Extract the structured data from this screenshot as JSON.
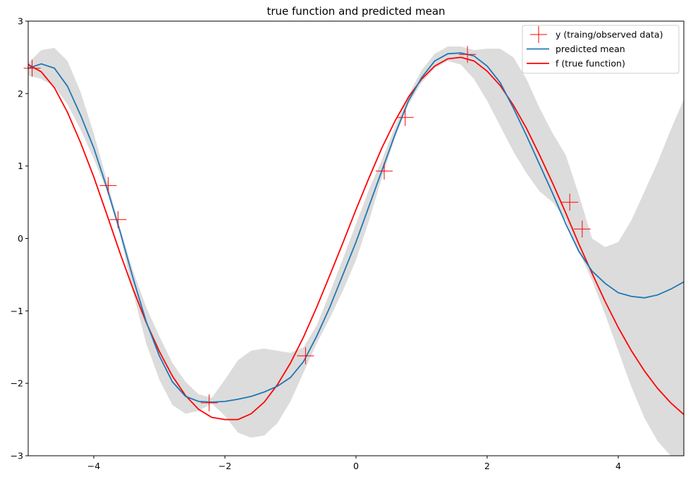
{
  "chart_data": {
    "type": "line",
    "title": "true function and predicted mean",
    "xlabel": "",
    "ylabel": "",
    "xlim": [
      -5,
      5
    ],
    "ylim": [
      -3,
      3
    ],
    "xticks": [
      -4,
      -2,
      0,
      2,
      4
    ],
    "yticks": [
      -3,
      -2,
      -1,
      0,
      1,
      2,
      3
    ],
    "legend_position": "top-right",
    "grid": false,
    "colors": {
      "observed": "#ff0000",
      "mean": "#1f77b4",
      "true": "#ff0000",
      "band": "#dcdcdc"
    },
    "series": [
      {
        "name": "y (traing/observed data)",
        "kind": "markers",
        "x": [
          -4.94,
          -3.78,
          -3.63,
          -2.24,
          -0.77,
          0.43,
          0.75,
          1.7,
          3.26,
          3.45
        ],
        "y": [
          2.35,
          0.73,
          0.26,
          -2.27,
          -1.62,
          0.93,
          1.67,
          2.54,
          0.5,
          0.13
        ]
      },
      {
        "name": "predicted mean",
        "kind": "line",
        "x": [
          -5,
          -4.8,
          -4.6,
          -4.4,
          -4.2,
          -4.0,
          -3.8,
          -3.6,
          -3.4,
          -3.2,
          -3.0,
          -2.8,
          -2.6,
          -2.4,
          -2.2,
          -2.0,
          -1.8,
          -1.6,
          -1.4,
          -1.2,
          -1.0,
          -0.8,
          -0.6,
          -0.4,
          -0.2,
          0.0,
          0.2,
          0.4,
          0.6,
          0.8,
          1.0,
          1.2,
          1.4,
          1.6,
          1.8,
          2.0,
          2.2,
          2.4,
          2.6,
          2.8,
          3.0,
          3.2,
          3.4,
          3.6,
          3.8,
          4.0,
          4.2,
          4.4,
          4.6,
          4.8,
          5.0
        ],
        "y": [
          2.35,
          2.41,
          2.35,
          2.1,
          1.7,
          1.25,
          0.7,
          0.1,
          -0.55,
          -1.15,
          -1.62,
          -1.98,
          -2.18,
          -2.25,
          -2.26,
          -2.25,
          -2.22,
          -2.18,
          -2.12,
          -2.04,
          -1.92,
          -1.7,
          -1.35,
          -0.95,
          -0.5,
          -0.05,
          0.45,
          0.95,
          1.45,
          1.9,
          2.22,
          2.45,
          2.55,
          2.56,
          2.52,
          2.38,
          2.15,
          1.8,
          1.42,
          1.02,
          0.62,
          0.2,
          -0.18,
          -0.45,
          -0.62,
          -0.75,
          -0.8,
          -0.82,
          -0.78,
          -0.7,
          -0.6
        ]
      },
      {
        "name": "f (true function)",
        "kind": "line",
        "x": [
          -5,
          -4.8,
          -4.6,
          -4.4,
          -4.2,
          -4.0,
          -3.8,
          -3.6,
          -3.4,
          -3.2,
          -3.0,
          -2.8,
          -2.6,
          -2.4,
          -2.2,
          -2.0,
          -1.8,
          -1.6,
          -1.4,
          -1.2,
          -1.0,
          -0.8,
          -0.6,
          -0.4,
          -0.2,
          0.0,
          0.2,
          0.4,
          0.6,
          0.8,
          1.0,
          1.2,
          1.4,
          1.6,
          1.8,
          2.0,
          2.2,
          2.4,
          2.6,
          2.8,
          3.0,
          3.2,
          3.4,
          3.6,
          3.8,
          4.0,
          4.2,
          4.4,
          4.6,
          4.8,
          5.0
        ],
        "y": [
          2.4,
          2.3,
          2.08,
          1.74,
          1.32,
          0.85,
          0.33,
          -0.2,
          -0.7,
          -1.16,
          -1.56,
          -1.9,
          -2.17,
          -2.36,
          -2.47,
          -2.5,
          -2.5,
          -2.42,
          -2.26,
          -2.02,
          -1.72,
          -1.36,
          -0.95,
          -0.51,
          -0.06,
          0.4,
          0.84,
          1.26,
          1.63,
          1.95,
          2.2,
          2.38,
          2.48,
          2.5,
          2.45,
          2.31,
          2.11,
          1.84,
          1.52,
          1.15,
          0.76,
          0.35,
          -0.08,
          -0.48,
          -0.87,
          -1.23,
          -1.55,
          -1.83,
          -2.07,
          -2.27,
          -2.43
        ]
      },
      {
        "name": "",
        "kind": "band",
        "x": [
          -5,
          -4.8,
          -4.6,
          -4.4,
          -4.2,
          -4.0,
          -3.8,
          -3.6,
          -3.4,
          -3.2,
          -3.0,
          -2.8,
          -2.6,
          -2.4,
          -2.2,
          -2.0,
          -1.8,
          -1.6,
          -1.4,
          -1.2,
          -1.0,
          -0.8,
          -0.6,
          -0.4,
          -0.2,
          0.0,
          0.2,
          0.4,
          0.6,
          0.8,
          1.0,
          1.2,
          1.4,
          1.6,
          1.8,
          2.0,
          2.2,
          2.4,
          2.6,
          2.8,
          3.0,
          3.2,
          3.4,
          3.6,
          3.8,
          4.0,
          4.2,
          4.4,
          4.6,
          4.8,
          5.0
        ],
        "lower": [
          2.25,
          2.2,
          2.1,
          1.85,
          1.5,
          1.1,
          0.65,
          0.05,
          -0.75,
          -1.45,
          -1.95,
          -2.3,
          -2.42,
          -2.38,
          -2.28,
          -2.45,
          -2.68,
          -2.75,
          -2.72,
          -2.55,
          -2.25,
          -1.85,
          -1.45,
          -1.1,
          -0.72,
          -0.3,
          0.25,
          0.85,
          1.4,
          1.85,
          2.15,
          2.35,
          2.45,
          2.4,
          2.2,
          1.9,
          1.55,
          1.2,
          0.9,
          0.65,
          0.5,
          0.25,
          -0.18,
          -0.58,
          -1.05,
          -1.55,
          -2.05,
          -2.48,
          -2.8,
          -3.0,
          -3.0
        ],
        "upper": [
          2.42,
          2.6,
          2.63,
          2.45,
          2.02,
          1.45,
          0.8,
          0.15,
          -0.45,
          -0.95,
          -1.35,
          -1.72,
          -1.98,
          -2.15,
          -2.2,
          -1.95,
          -1.68,
          -1.55,
          -1.52,
          -1.55,
          -1.58,
          -1.5,
          -1.2,
          -0.75,
          -0.28,
          0.2,
          0.68,
          1.1,
          1.55,
          1.98,
          2.32,
          2.55,
          2.65,
          2.65,
          2.6,
          2.62,
          2.62,
          2.5,
          2.2,
          1.8,
          1.45,
          1.15,
          0.6,
          0.0,
          -0.12,
          -0.05,
          0.25,
          0.65,
          1.05,
          1.5,
          1.92
        ]
      }
    ]
  }
}
